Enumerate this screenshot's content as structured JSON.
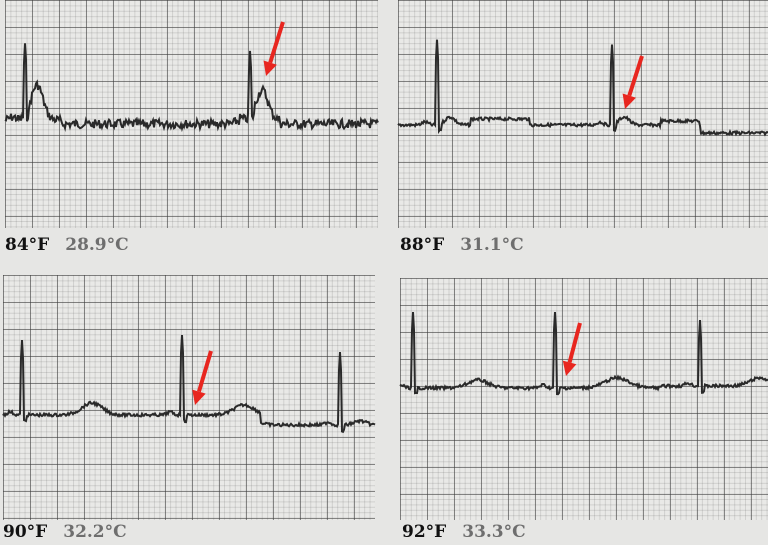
{
  "panels": [
    {
      "fahrenheit": "84°F",
      "celsius": "28.9°C"
    },
    {
      "fahrenheit": "88°F",
      "celsius": "31.1°C"
    },
    {
      "fahrenheit": "90°F",
      "celsius": "32.2°C"
    },
    {
      "fahrenheit": "92°F",
      "celsius": "33.3°C"
    }
  ],
  "colors": {
    "trace": "#2a2a2a",
    "arrow": "#e8261f",
    "grid": "#3c3c3c"
  },
  "icons": [
    "red-arrow-icon"
  ]
}
